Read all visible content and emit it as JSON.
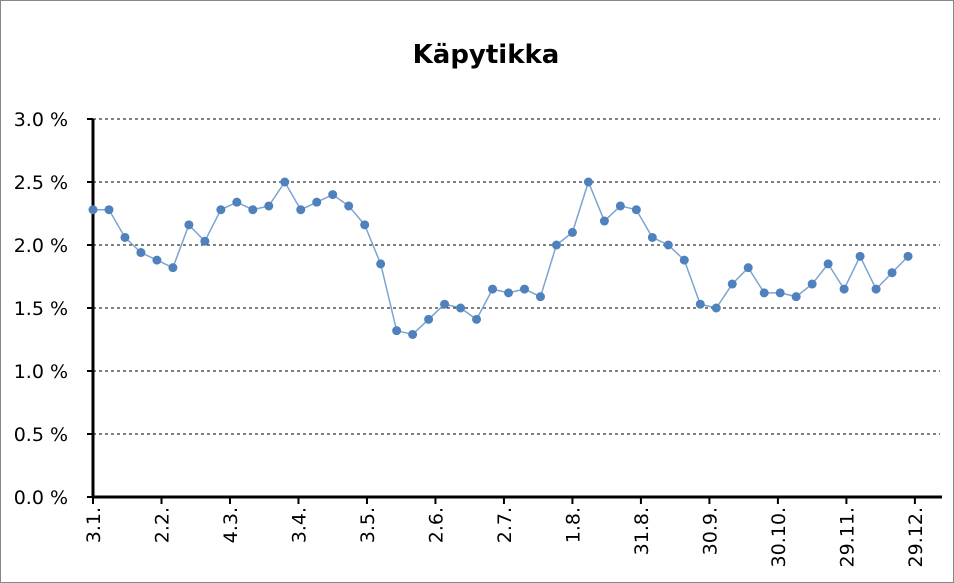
{
  "chart_data": {
    "type": "line",
    "title": "Käpytikka",
    "x": [
      0,
      7,
      14,
      21,
      28,
      35,
      42,
      49,
      56,
      63,
      70,
      77,
      84,
      91,
      98,
      105,
      112,
      119,
      126,
      133,
      140,
      147,
      154,
      161,
      168,
      175,
      182,
      189,
      196,
      203,
      210,
      217,
      224,
      231,
      238,
      245,
      252,
      259,
      266,
      273,
      280,
      287,
      294,
      301,
      308,
      315,
      322,
      329,
      336,
      343,
      350,
      357
    ],
    "series": [
      {
        "name": "Käpytikka",
        "color": "#4f81bd",
        "values": [
          2.28,
          2.28,
          2.06,
          1.94,
          1.88,
          1.82,
          2.16,
          2.03,
          2.28,
          2.34,
          2.28,
          2.31,
          2.5,
          2.28,
          2.34,
          2.4,
          2.31,
          2.16,
          1.85,
          1.32,
          1.29,
          1.41,
          1.53,
          1.5,
          1.41,
          1.65,
          1.62,
          1.65,
          1.59,
          2.0,
          2.1,
          2.5,
          2.19,
          2.31,
          2.28,
          2.06,
          2.0,
          1.88,
          1.53,
          1.5,
          1.69,
          1.82,
          1.62,
          1.62,
          1.59,
          1.69,
          1.85,
          1.65,
          1.91,
          1.65,
          1.78,
          1.91
        ]
      }
    ],
    "xlim": [
      0,
      371
    ],
    "xticks": [
      {
        "value": 0,
        "label": "3.1."
      },
      {
        "value": 30,
        "label": "2.2."
      },
      {
        "value": 60,
        "label": "4.3."
      },
      {
        "value": 90,
        "label": "3.4."
      },
      {
        "value": 120,
        "label": "3.5."
      },
      {
        "value": 150,
        "label": "2.6."
      },
      {
        "value": 180,
        "label": "2.7."
      },
      {
        "value": 210,
        "label": "1.8."
      },
      {
        "value": 240,
        "label": "31.8."
      },
      {
        "value": 270,
        "label": "30.9."
      },
      {
        "value": 300,
        "label": "30.10."
      },
      {
        "value": 330,
        "label": "29.11."
      },
      {
        "value": 360,
        "label": "29.12."
      }
    ],
    "ylim": [
      0,
      3
    ],
    "yticks": [
      {
        "value": 0,
        "label": "0.0 %"
      },
      {
        "value": 0.5,
        "label": "0.5 %"
      },
      {
        "value": 1,
        "label": "1.0 %"
      },
      {
        "value": 1.5,
        "label": "1.5 %"
      },
      {
        "value": 2,
        "label": "2.0 %"
      },
      {
        "value": 2.5,
        "label": "2.5 %"
      },
      {
        "value": 3,
        "label": "3.0 %"
      }
    ],
    "grid": true
  }
}
